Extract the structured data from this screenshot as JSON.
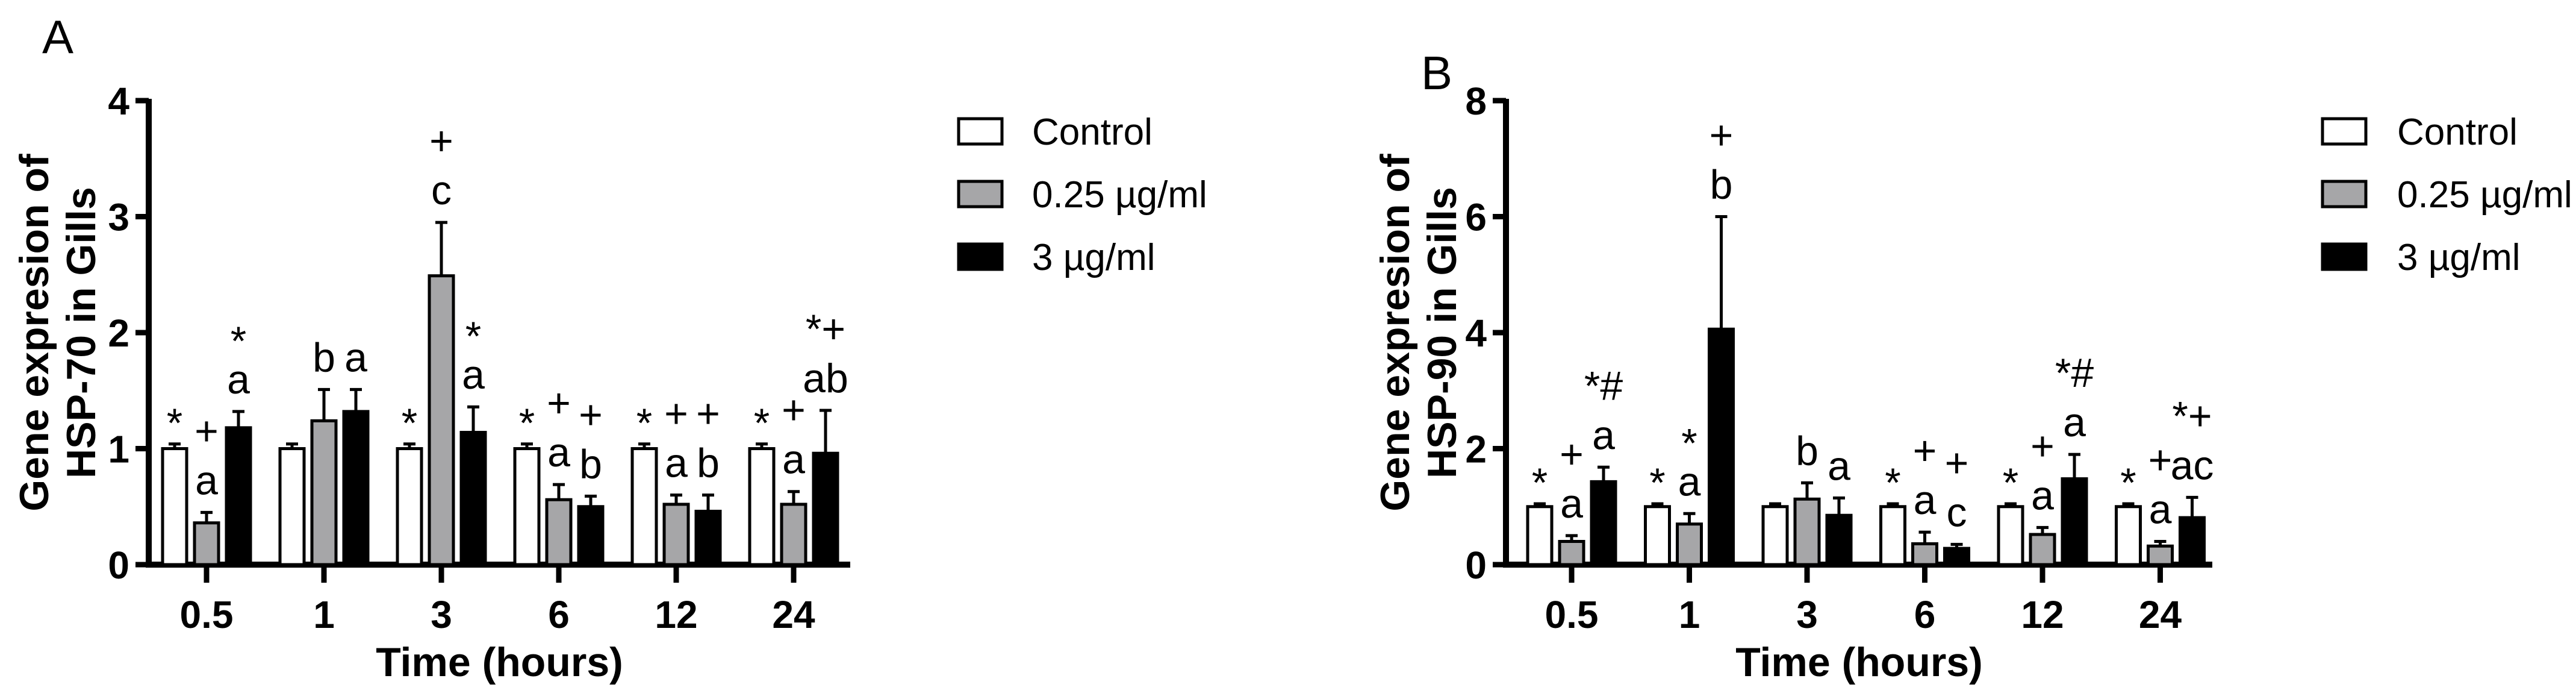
{
  "chart_data": [
    {
      "type": "bar",
      "panel_label": "A",
      "ylabel": [
        "Gene expresion of",
        "HSP-70 in Gills"
      ],
      "xlabel": "Time (hours)",
      "categories": [
        "0.5",
        "1",
        "3",
        "6",
        "12",
        "24"
      ],
      "ylim": [
        0,
        4
      ],
      "yticks": [
        "0",
        "1",
        "2",
        "3",
        "4"
      ],
      "grid": false,
      "legend": "right",
      "series": [
        {
          "name": "Control",
          "color": "#ffffff",
          "values": [
            1.0,
            1.0,
            1.0,
            1.0,
            1.0,
            1.0
          ],
          "error": [
            0.04,
            0.04,
            0.04,
            0.04,
            0.04,
            0.04
          ],
          "annotations": [
            [
              "*"
            ],
            [],
            [
              "*"
            ],
            [
              "*"
            ],
            [
              "*"
            ],
            [
              "*"
            ]
          ]
        },
        {
          "name": "0.25 µg/ml",
          "color": "#a6a6a8",
          "values": [
            0.36,
            1.24,
            2.49,
            0.56,
            0.52,
            0.52
          ],
          "error": [
            0.09,
            0.27,
            0.46,
            0.13,
            0.08,
            0.11
          ],
          "annotations": [
            [
              "+",
              "a"
            ],
            [
              "b"
            ],
            [
              "+",
              "c"
            ],
            [
              "+",
              "a"
            ],
            [
              "+",
              "a"
            ],
            [
              "+",
              "a"
            ]
          ]
        },
        {
          "name": "3 µg/ml",
          "color": "#000000",
          "values": [
            1.18,
            1.32,
            1.14,
            0.5,
            0.46,
            0.96
          ],
          "error": [
            0.14,
            0.19,
            0.22,
            0.09,
            0.14,
            0.37
          ],
          "annotations": [
            [
              "*",
              "a"
            ],
            [
              "a"
            ],
            [
              "*",
              "a"
            ],
            [
              "+",
              "b"
            ],
            [
              "+",
              "b"
            ],
            [
              "*+",
              "ab"
            ]
          ]
        }
      ]
    },
    {
      "type": "bar",
      "panel_label": "B",
      "ylabel": [
        "Gene expresion of",
        "HSP-90 in Gills"
      ],
      "xlabel": "Time (hours)",
      "categories": [
        "0.5",
        "1",
        "3",
        "6",
        "12",
        "24"
      ],
      "ylim": [
        0,
        8
      ],
      "yticks": [
        "0",
        "2",
        "4",
        "6",
        "8"
      ],
      "grid": false,
      "legend": "right",
      "series": [
        {
          "name": "Control",
          "color": "#ffffff",
          "values": [
            1.0,
            1.0,
            1.0,
            1.0,
            1.0,
            1.0
          ],
          "error": [
            0.05,
            0.05,
            0.05,
            0.05,
            0.05,
            0.05
          ],
          "annotations": [
            [
              "*"
            ],
            [
              "*"
            ],
            [],
            [
              "*"
            ],
            [
              "*"
            ],
            [
              "*"
            ]
          ]
        },
        {
          "name": "0.25 µg/ml",
          "color": "#a6a6a8",
          "values": [
            0.4,
            0.7,
            1.13,
            0.36,
            0.52,
            0.32
          ],
          "error": [
            0.1,
            0.18,
            0.28,
            0.2,
            0.12,
            0.08
          ],
          "annotations": [
            [
              "+",
              "a"
            ],
            [
              "*",
              "a"
            ],
            [
              "b"
            ],
            [
              "+",
              "a"
            ],
            [
              "+",
              "a"
            ],
            [
              "+",
              "a"
            ]
          ]
        },
        {
          "name": "3 µg/ml",
          "color": "#000000",
          "values": [
            1.43,
            4.06,
            0.85,
            0.28,
            1.48,
            0.81
          ],
          "error": [
            0.25,
            1.94,
            0.3,
            0.07,
            0.42,
            0.35
          ],
          "annotations": [
            [
              "*#",
              "a"
            ],
            [
              "+",
              "b"
            ],
            [
              "a"
            ],
            [
              "+",
              "c"
            ],
            [
              "*#",
              "a"
            ],
            [
              "*+",
              "ac"
            ]
          ]
        }
      ]
    }
  ]
}
